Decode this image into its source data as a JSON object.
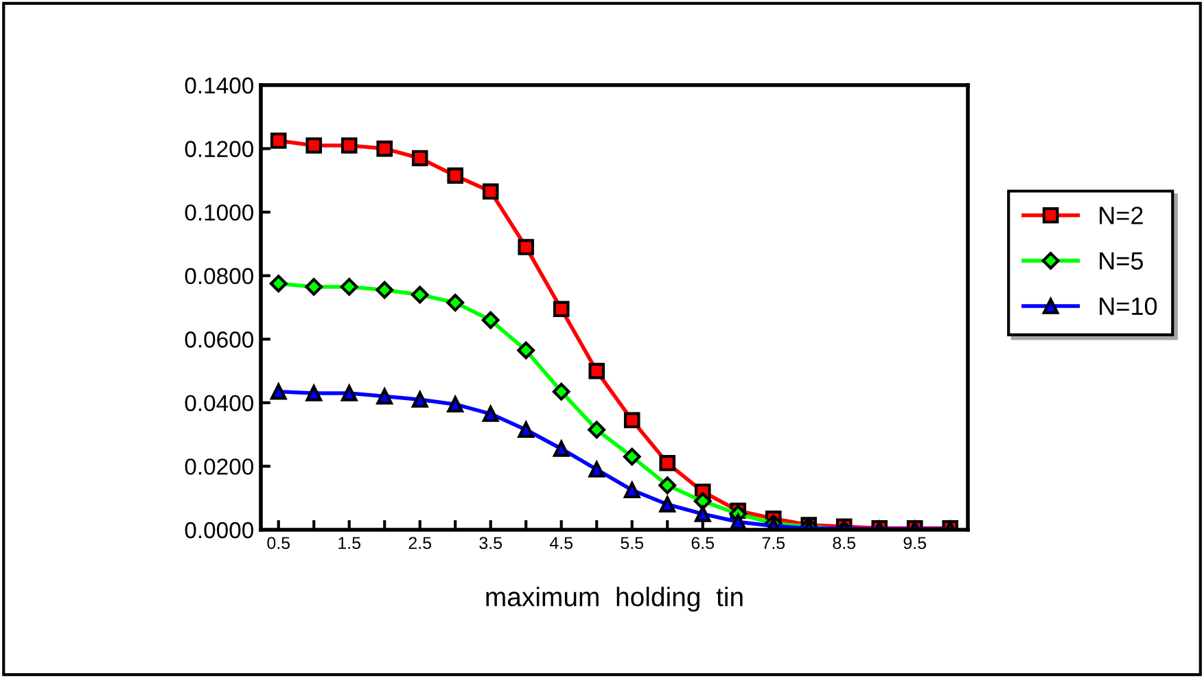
{
  "chart_data": {
    "type": "line",
    "xlabel": "maximum  holding  tin",
    "categories": [
      "0.5",
      null,
      "1.5",
      null,
      "2.5",
      null,
      "3.5",
      null,
      "4.5",
      null,
      "5.5",
      null,
      "6.5",
      null,
      "7.5",
      null,
      "8.5",
      null,
      "9.5",
      null
    ],
    "series": [
      {
        "name": "N=2",
        "color": "#ff0000",
        "marker": "square",
        "values": [
          0.1225,
          0.121,
          0.121,
          0.12,
          0.117,
          0.1115,
          0.1065,
          0.089,
          0.0695,
          0.05,
          0.0345,
          0.021,
          0.012,
          0.006,
          0.0035,
          0.0015,
          0.001,
          0.0005,
          0.0005,
          0.0005
        ]
      },
      {
        "name": "N=5",
        "color": "#00ff00",
        "marker": "diamond",
        "values": [
          0.0775,
          0.0765,
          0.0765,
          0.0755,
          0.074,
          0.0715,
          0.066,
          0.0565,
          0.0435,
          0.0315,
          0.023,
          0.014,
          0.009,
          0.005,
          0.002,
          0.001,
          0.0,
          null,
          null,
          null
        ]
      },
      {
        "name": "N=10",
        "color": "#0000ff",
        "marker": "triangle",
        "values": [
          0.0435,
          0.043,
          0.043,
          0.042,
          0.041,
          0.0395,
          0.0365,
          0.0315,
          0.0255,
          0.019,
          0.0125,
          0.008,
          0.005,
          0.0025,
          0.0012,
          0.0005,
          0.0003,
          0.0002,
          0.0002,
          0.0002
        ]
      }
    ],
    "ylim": [
      0,
      0.14
    ],
    "yticks": [
      {
        "value": 0,
        "label": "0.0000"
      },
      {
        "value": 0.02,
        "label": "0.0200"
      },
      {
        "value": 0.04,
        "label": "0.0400"
      },
      {
        "value": 0.06,
        "label": "0.0600"
      },
      {
        "value": 0.08,
        "label": "0.0800"
      },
      {
        "value": 0.1,
        "label": "0.1000"
      },
      {
        "value": 0.12,
        "label": "0.1200"
      },
      {
        "value": 0.14,
        "label": "0.1400"
      }
    ],
    "line_style": "solid",
    "grid": false,
    "legend": "right"
  }
}
